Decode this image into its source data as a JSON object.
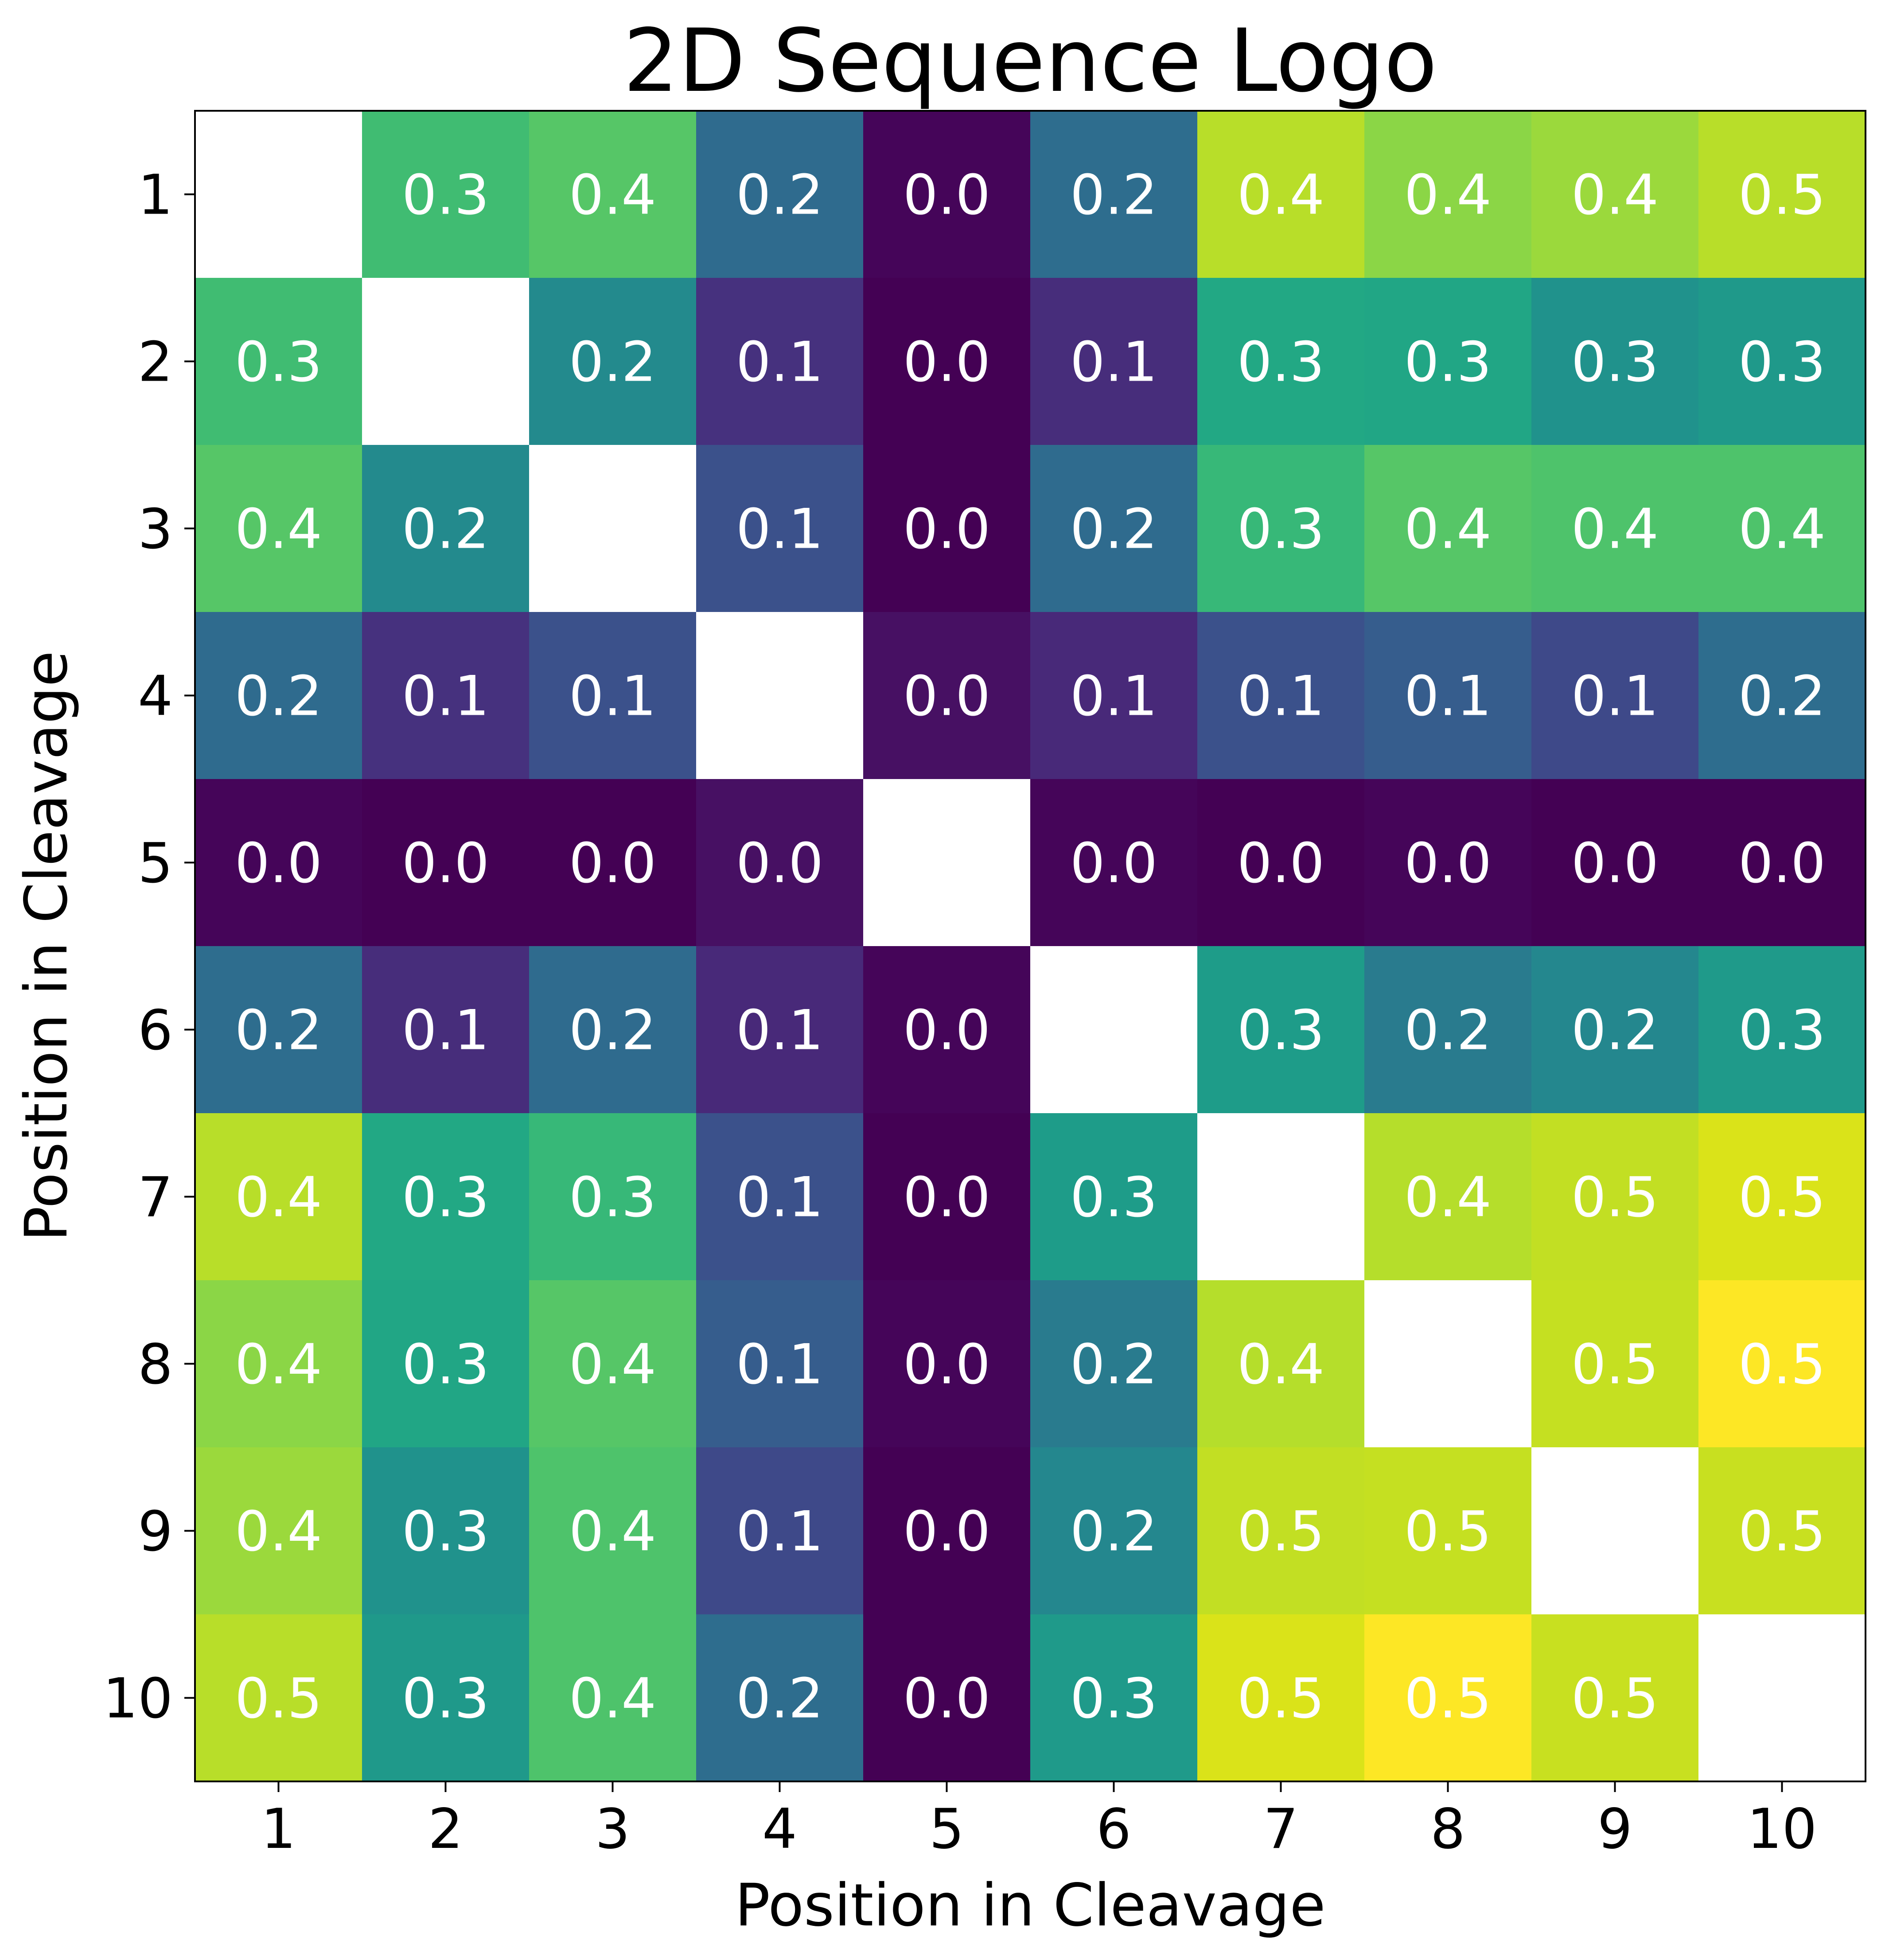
{
  "chart_data": {
    "type": "heatmap",
    "title": "2D Sequence Logo",
    "xlabel": "Position in Cleavage",
    "ylabel": "Position in Cleavage",
    "x_categories": [
      "1",
      "2",
      "3",
      "4",
      "5",
      "6",
      "7",
      "8",
      "9",
      "10"
    ],
    "y_categories": [
      "1",
      "2",
      "3",
      "4",
      "5",
      "6",
      "7",
      "8",
      "9",
      "10"
    ],
    "colormap": "viridis",
    "value_range": [
      0.0,
      0.5
    ],
    "diagonal_masked": true,
    "values": [
      [
        null,
        0.3,
        0.4,
        0.2,
        0.0,
        0.2,
        0.4,
        0.4,
        0.4,
        0.5
      ],
      [
        0.3,
        null,
        0.2,
        0.1,
        0.0,
        0.1,
        0.3,
        0.3,
        0.3,
        0.3
      ],
      [
        0.4,
        0.2,
        null,
        0.1,
        0.0,
        0.2,
        0.3,
        0.4,
        0.4,
        0.4
      ],
      [
        0.2,
        0.1,
        0.1,
        null,
        0.0,
        0.1,
        0.1,
        0.1,
        0.1,
        0.2
      ],
      [
        0.0,
        0.0,
        0.0,
        0.0,
        null,
        0.0,
        0.0,
        0.0,
        0.0,
        0.0
      ],
      [
        0.2,
        0.1,
        0.2,
        0.1,
        0.0,
        null,
        0.3,
        0.2,
        0.2,
        0.3
      ],
      [
        0.4,
        0.3,
        0.3,
        0.1,
        0.0,
        0.3,
        null,
        0.4,
        0.5,
        0.5
      ],
      [
        0.4,
        0.3,
        0.4,
        0.1,
        0.0,
        0.2,
        0.4,
        null,
        0.5,
        0.5
      ],
      [
        0.4,
        0.3,
        0.4,
        0.1,
        0.0,
        0.2,
        0.5,
        0.5,
        null,
        0.5
      ],
      [
        0.5,
        0.3,
        0.4,
        0.2,
        0.0,
        0.3,
        0.5,
        0.5,
        0.5,
        null
      ]
    ],
    "cell_colors": [
      [
        null,
        "#40bc72",
        "#56c667",
        "#2f6b8e",
        "#450559",
        "#2e6d8e",
        "#b8de29",
        "#8bd646",
        "#9bd93c",
        "#b8de29"
      ],
      [
        null,
        null,
        "#238a8d",
        "#46317e",
        "#440154",
        "#472d7b",
        "#22a884",
        "#21a685",
        "#20928c",
        "#1f998a"
      ],
      [
        null,
        null,
        null,
        "#3b518b",
        "#440154",
        "#2f6b8e",
        "#37b878",
        "#56c667",
        "#4ec36b",
        "#4ec36b"
      ],
      [
        null,
        null,
        null,
        null,
        "#471063",
        "#482979",
        "#3b518b",
        "#365d8d",
        "#3e4989",
        "#2e6d8e"
      ],
      [
        null,
        null,
        null,
        null,
        null,
        "#450559",
        "#440154",
        "#450559",
        "#440154",
        "#440154"
      ],
      [
        null,
        null,
        null,
        null,
        null,
        null,
        "#1e9c89",
        "#297b8e",
        "#24878e",
        "#1f9a8a"
      ],
      [
        null,
        null,
        null,
        null,
        null,
        null,
        null,
        "#b5de2b",
        "#c2df23",
        "#dae319"
      ],
      [
        null,
        null,
        null,
        null,
        null,
        null,
        null,
        null,
        "#c5e021",
        "#fde725"
      ],
      [
        null,
        null,
        null,
        null,
        null,
        null,
        null,
        null,
        null,
        "#c8e020"
      ],
      [
        null,
        null,
        null,
        null,
        null,
        null,
        null,
        null,
        null,
        null
      ]
    ],
    "grid": false,
    "legend": "none",
    "label_color": "#ffffff",
    "mask_color": "#ffffff"
  }
}
